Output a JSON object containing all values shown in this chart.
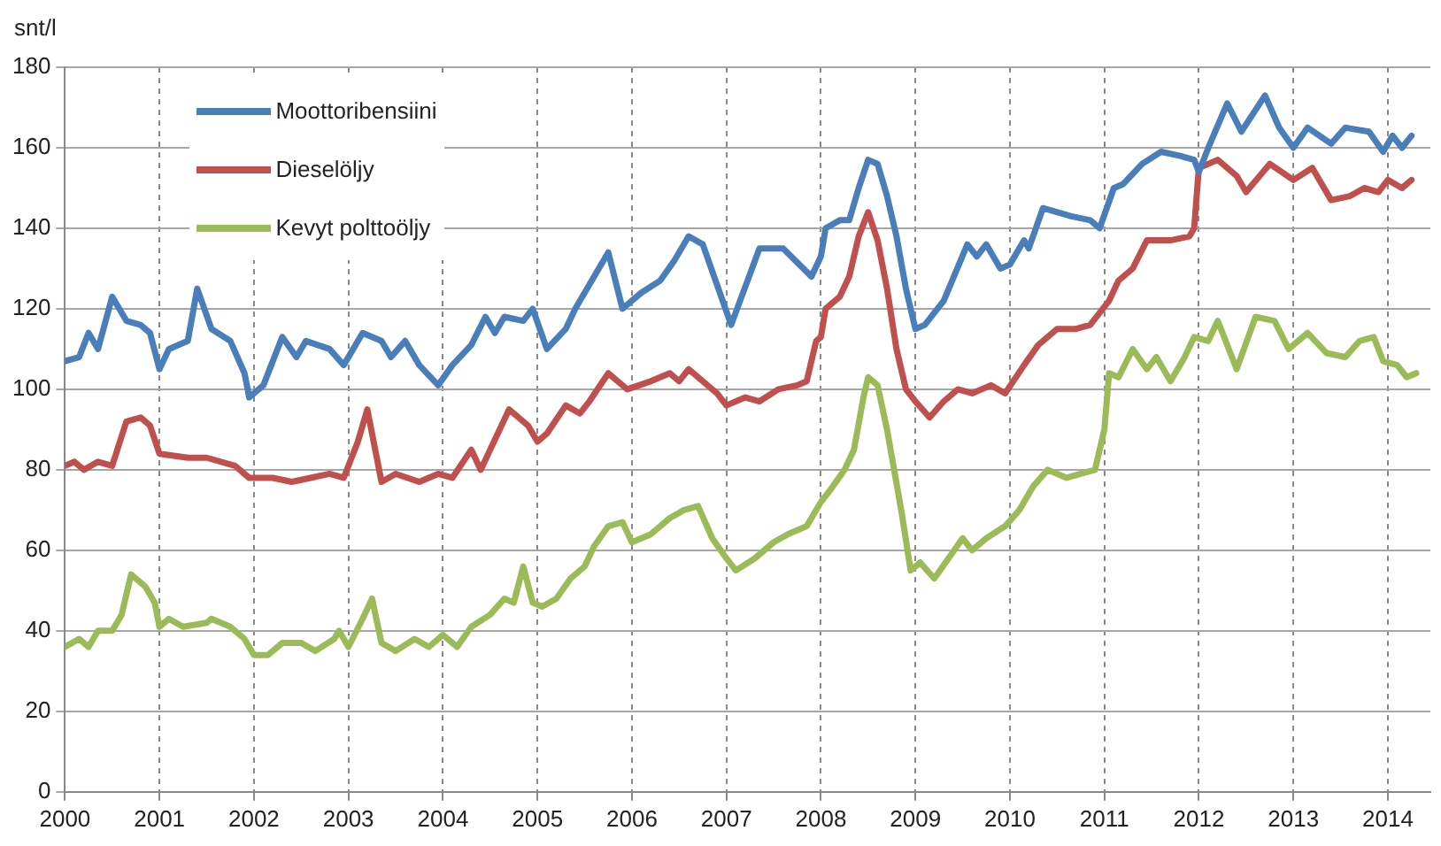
{
  "chart_data": {
    "type": "line",
    "ylabel": "snt/l",
    "xlim": [
      2000,
      2014.45
    ],
    "xticks": [
      2000,
      2001,
      2002,
      2003,
      2004,
      2005,
      2006,
      2007,
      2008,
      2009,
      2010,
      2011,
      2012,
      2013,
      2014
    ],
    "ylim": [
      0,
      180
    ],
    "yticks": [
      0,
      20,
      40,
      60,
      80,
      100,
      120,
      140,
      160,
      180
    ],
    "grid": true,
    "legend": "top left",
    "marker": "none",
    "line_style": "solid",
    "series": [
      {
        "name": "Moottoribensiini",
        "color": "#4a7ebb",
        "x": [
          2000,
          2000.15,
          2000.25,
          2000.35,
          2000.5,
          2000.65,
          2000.8,
          2000.9,
          2001,
          2001.1,
          2001.3,
          2001.4,
          2001.55,
          2001.75,
          2001.9,
          2001.95,
          2002.1,
          2002.3,
          2002.45,
          2002.55,
          2002.8,
          2002.95,
          2003.15,
          2003.35,
          2003.45,
          2003.6,
          2003.75,
          2003.95,
          2004.1,
          2004.3,
          2004.45,
          2004.55,
          2004.65,
          2004.85,
          2004.95,
          2005.1,
          2005.3,
          2005.4,
          2005.6,
          2005.75,
          2005.9,
          2006.1,
          2006.3,
          2006.45,
          2006.6,
          2006.75,
          2006.9,
          2007.05,
          2007.35,
          2007.6,
          2007.9,
          2008,
          2008.05,
          2008.2,
          2008.3,
          2008.4,
          2008.5,
          2008.6,
          2008.7,
          2008.8,
          2008.9,
          2009,
          2009.1,
          2009.3,
          2009.55,
          2009.65,
          2009.75,
          2009.9,
          2010,
          2010.15,
          2010.2,
          2010.35,
          2010.65,
          2010.85,
          2010.95,
          2011.1,
          2011.2,
          2011.4,
          2011.6,
          2011.8,
          2011.95,
          2012,
          2012.1,
          2012.3,
          2012.45,
          2012.7,
          2012.85,
          2013,
          2013.15,
          2013.4,
          2013.55,
          2013.8,
          2013.95,
          2014.05,
          2014.15,
          2014.25
        ],
        "values": [
          107,
          108,
          114,
          110,
          123,
          117,
          116,
          114,
          105,
          110,
          112,
          125,
          115,
          112,
          104,
          98,
          101,
          113,
          108,
          112,
          110,
          106,
          114,
          112,
          108,
          112,
          106,
          101,
          106,
          111,
          118,
          114,
          118,
          117,
          120,
          110,
          115,
          120,
          128,
          134,
          120,
          124,
          127,
          132,
          138,
          136,
          126,
          116,
          135,
          135,
          128,
          133,
          140,
          142,
          142,
          150,
          157,
          156,
          148,
          138,
          125,
          115,
          116,
          122,
          136,
          133,
          136,
          130,
          131,
          137,
          135,
          145,
          143,
          142,
          140,
          150,
          151,
          156,
          159,
          158,
          157,
          154,
          160,
          171,
          164,
          173,
          165,
          160,
          165,
          161,
          165,
          164,
          159,
          163,
          160,
          163
        ]
      },
      {
        "name": "Dieselöljy",
        "color": "#c0504d",
        "x": [
          2000,
          2000.1,
          2000.2,
          2000.35,
          2000.5,
          2000.65,
          2000.8,
          2000.9,
          2001,
          2001.3,
          2001.5,
          2001.8,
          2001.95,
          2002.2,
          2002.4,
          2002.6,
          2002.8,
          2002.95,
          2003.1,
          2003.2,
          2003.35,
          2003.5,
          2003.75,
          2003.95,
          2004.1,
          2004.3,
          2004.4,
          2004.6,
          2004.7,
          2004.9,
          2005,
          2005.1,
          2005.3,
          2005.45,
          2005.55,
          2005.75,
          2005.85,
          2005.95,
          2006.2,
          2006.4,
          2006.5,
          2006.6,
          2006.8,
          2006.9,
          2007,
          2007.2,
          2007.35,
          2007.55,
          2007.75,
          2007.85,
          2007.95,
          2008,
          2008.05,
          2008.2,
          2008.3,
          2008.4,
          2008.5,
          2008.6,
          2008.7,
          2008.8,
          2008.9,
          2009,
          2009.15,
          2009.3,
          2009.45,
          2009.6,
          2009.8,
          2009.95,
          2010.15,
          2010.3,
          2010.5,
          2010.7,
          2010.85,
          2011.05,
          2011.15,
          2011.3,
          2011.45,
          2011.7,
          2011.9,
          2011.95,
          2012,
          2012.2,
          2012.4,
          2012.5,
          2012.75,
          2013,
          2013.2,
          2013.4,
          2013.6,
          2013.75,
          2013.9,
          2014,
          2014.15,
          2014.25
        ],
        "values": [
          81,
          82,
          80,
          82,
          81,
          92,
          93,
          91,
          84,
          83,
          83,
          81,
          78,
          78,
          77,
          78,
          79,
          78,
          87,
          95,
          77,
          79,
          77,
          79,
          78,
          85,
          80,
          90,
          95,
          91,
          87,
          89,
          96,
          94,
          97,
          104,
          102,
          100,
          102,
          104,
          102,
          105,
          101,
          99,
          96,
          98,
          97,
          100,
          101,
          102,
          112,
          113,
          120,
          123,
          128,
          138,
          144,
          137,
          125,
          110,
          100,
          97,
          93,
          97,
          100,
          99,
          101,
          99,
          106,
          111,
          115,
          115,
          116,
          122,
          127,
          130,
          137,
          137,
          138,
          140,
          155,
          157,
          153,
          149,
          156,
          152,
          155,
          147,
          148,
          150,
          149,
          152,
          150,
          152
        ]
      },
      {
        "name": "Kevyt polttoöljy",
        "color": "#9bbb59",
        "x": [
          2000,
          2000.15,
          2000.25,
          2000.35,
          2000.5,
          2000.6,
          2000.7,
          2000.85,
          2000.95,
          2001,
          2001.1,
          2001.25,
          2001.5,
          2001.55,
          2001.75,
          2001.9,
          2002,
          2002.15,
          2002.3,
          2002.5,
          2002.65,
          2002.85,
          2002.9,
          2003,
          2003.15,
          2003.25,
          2003.35,
          2003.5,
          2003.7,
          2003.85,
          2004,
          2004.1,
          2004.15,
          2004.3,
          2004.5,
          2004.65,
          2004.75,
          2004.85,
          2004.95,
          2005.05,
          2005.2,
          2005.35,
          2005.5,
          2005.6,
          2005.75,
          2005.9,
          2006,
          2006.2,
          2006.4,
          2006.55,
          2006.7,
          2006.85,
          2007,
          2007.1,
          2007.3,
          2007.5,
          2007.65,
          2007.85,
          2008,
          2008.1,
          2008.25,
          2008.35,
          2008.45,
          2008.5,
          2008.6,
          2008.7,
          2008.85,
          2008.95,
          2009.05,
          2009.2,
          2009.35,
          2009.5,
          2009.6,
          2009.75,
          2009.95,
          2010.1,
          2010.25,
          2010.4,
          2010.6,
          2010.75,
          2010.9,
          2011,
          2011.05,
          2011.15,
          2011.3,
          2011.45,
          2011.55,
          2011.7,
          2011.85,
          2011.95,
          2012.1,
          2012.2,
          2012.4,
          2012.6,
          2012.8,
          2012.95,
          2013.15,
          2013.35,
          2013.55,
          2013.7,
          2013.85,
          2013.95,
          2014.1,
          2014.2,
          2014.3
        ],
        "values": [
          36,
          38,
          36,
          40,
          40,
          44,
          54,
          51,
          47,
          41,
          43,
          41,
          42,
          43,
          41,
          38,
          34,
          34,
          37,
          37,
          35,
          38,
          40,
          36,
          43,
          48,
          37,
          35,
          38,
          36,
          39,
          37,
          36,
          41,
          44,
          48,
          47,
          56,
          47,
          46,
          48,
          53,
          56,
          61,
          66,
          67,
          62,
          64,
          68,
          70,
          71,
          63,
          58,
          55,
          58,
          62,
          64,
          66,
          72,
          75,
          80,
          85,
          98,
          103,
          101,
          90,
          70,
          55,
          57,
          53,
          58,
          63,
          60,
          63,
          66,
          70,
          76,
          80,
          78,
          79,
          80,
          90,
          104,
          103,
          110,
          105,
          108,
          102,
          108,
          113,
          112,
          117,
          105,
          118,
          117,
          110,
          114,
          109,
          108,
          112,
          113,
          107,
          106,
          103,
          104
        ]
      }
    ]
  }
}
